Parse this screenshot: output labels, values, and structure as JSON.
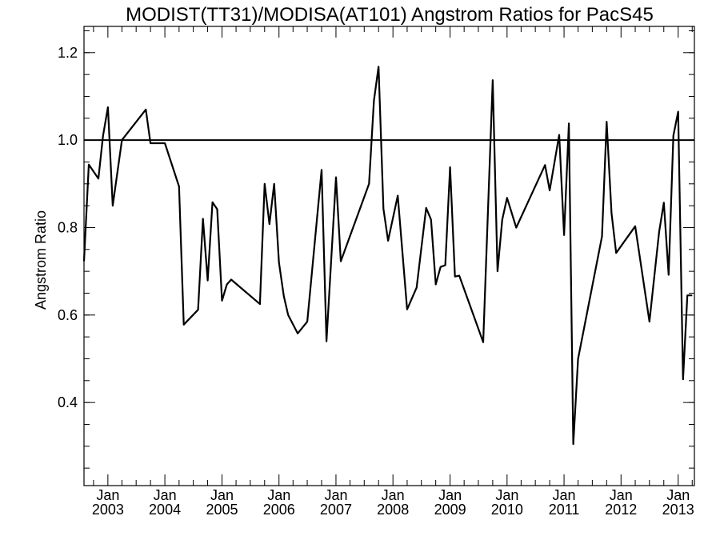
{
  "chart_data": {
    "type": "line",
    "title": "MODIST(TT31)/MODISA(AT101)  Angstrom Ratios for PacS45",
    "xlabel": "",
    "ylabel": "Angstrom Ratio",
    "xlim": [
      "2002-08-01",
      "2013-04-15"
    ],
    "ylim": [
      0.21,
      1.26
    ],
    "y_ticks": [
      0.4,
      0.6,
      0.8,
      1.0,
      1.2
    ],
    "y_tick_labels": [
      "0.4",
      "0.6",
      "0.8",
      "1.0",
      "1.2"
    ],
    "x_ticks": [
      {
        "date": "2003-01-01",
        "month": "Jan",
        "year": "2003"
      },
      {
        "date": "2004-01-01",
        "month": "Jan",
        "year": "2004"
      },
      {
        "date": "2005-01-01",
        "month": "Jan",
        "year": "2005"
      },
      {
        "date": "2006-01-01",
        "month": "Jan",
        "year": "2006"
      },
      {
        "date": "2007-01-01",
        "month": "Jan",
        "year": "2007"
      },
      {
        "date": "2008-01-01",
        "month": "Jan",
        "year": "2008"
      },
      {
        "date": "2009-01-01",
        "month": "Jan",
        "year": "2009"
      },
      {
        "date": "2010-01-01",
        "month": "Jan",
        "year": "2010"
      },
      {
        "date": "2011-01-01",
        "month": "Jan",
        "year": "2011"
      },
      {
        "date": "2012-01-01",
        "month": "Jan",
        "year": "2012"
      },
      {
        "date": "2013-01-01",
        "month": "Jan",
        "year": "2013"
      }
    ],
    "reference_line": 1.0,
    "grid": false,
    "series": [
      {
        "color": "#000000",
        "x": [
          "2002-08-01",
          "2002-09-01",
          "2002-11-01",
          "2002-12-01",
          "2003-01-01",
          "2003-02-01",
          "2003-04-01",
          "2003-09-01",
          "2003-10-01",
          "2003-12-01",
          "2004-01-01",
          "2004-04-01",
          "2004-05-01",
          "2004-08-01",
          "2004-09-01",
          "2004-10-01",
          "2004-11-01",
          "2004-12-01",
          "2005-01-01",
          "2005-02-01",
          "2005-03-01",
          "2005-09-01",
          "2005-10-01",
          "2005-11-01",
          "2005-12-01",
          "2006-01-01",
          "2006-02-01",
          "2006-03-01",
          "2006-05-01",
          "2006-07-01",
          "2006-10-01",
          "2006-11-01",
          "2007-01-01",
          "2007-02-01",
          "2007-08-01",
          "2007-09-01",
          "2007-10-01",
          "2007-11-01",
          "2007-12-01",
          "2008-02-01",
          "2008-04-01",
          "2008-06-01",
          "2008-08-01",
          "2008-09-01",
          "2008-10-01",
          "2008-11-01",
          "2008-12-01",
          "2009-01-01",
          "2009-02-01",
          "2009-03-01",
          "2009-08-01",
          "2009-10-01",
          "2009-11-01",
          "2009-12-01",
          "2010-01-01",
          "2010-03-01",
          "2010-09-01",
          "2010-10-01",
          "2010-12-01",
          "2011-01-01",
          "2011-02-01",
          "2011-03-01",
          "2011-04-01",
          "2011-09-01",
          "2011-10-01",
          "2011-11-01",
          "2011-12-01",
          "2012-04-01",
          "2012-07-01",
          "2012-09-01",
          "2012-10-01",
          "2012-11-01",
          "2012-12-01",
          "2013-01-01",
          "2013-02-01",
          "2013-03-01",
          "2013-04-01"
        ],
        "y": [
          0.723,
          0.944,
          0.912,
          1.01,
          1.075,
          0.85,
          1.0,
          1.07,
          0.993,
          0.993,
          0.993,
          0.894,
          0.578,
          0.612,
          0.82,
          0.679,
          0.858,
          0.842,
          0.633,
          0.67,
          0.681,
          0.625,
          0.9,
          0.808,
          0.9,
          0.72,
          0.643,
          0.6,
          0.558,
          0.585,
          0.932,
          0.54,
          0.915,
          0.723,
          0.9,
          1.09,
          1.168,
          0.843,
          0.77,
          0.873,
          0.613,
          0.663,
          0.845,
          0.818,
          0.67,
          0.71,
          0.714,
          0.938,
          0.688,
          0.69,
          0.538,
          1.137,
          0.7,
          0.818,
          0.868,
          0.8,
          0.943,
          0.885,
          1.012,
          0.783,
          1.038,
          0.305,
          0.5,
          0.78,
          1.042,
          0.833,
          0.742,
          0.803,
          0.585,
          0.79,
          0.857,
          0.692,
          1.01,
          1.065,
          0.453,
          0.645,
          0.645
        ]
      }
    ]
  }
}
